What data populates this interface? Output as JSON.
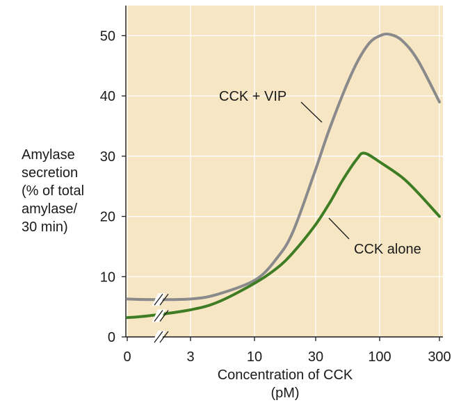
{
  "chart_data": {
    "type": "line",
    "ylabel_lines": [
      "Amylase",
      "secretion",
      "(% of total",
      "amylase/",
      "30 min)"
    ],
    "xlabel_lines": [
      "Concentration of CCK",
      "(pM)"
    ],
    "x_scale": "log",
    "x_ticks": [
      "0",
      "3",
      "10",
      "30",
      "100",
      "300"
    ],
    "y_ticks": [
      "0",
      "10",
      "20",
      "30",
      "40",
      "50"
    ],
    "ylim": [
      0,
      55
    ],
    "grid": true,
    "axis_break": true,
    "series": [
      {
        "name": "CCK + VIP",
        "color": "#8a8a8c",
        "points": [
          [
            0,
            6.3
          ],
          [
            1,
            6.2
          ],
          [
            3,
            6.3
          ],
          [
            5,
            7.1
          ],
          [
            10,
            9.5
          ],
          [
            15,
            13.2
          ],
          [
            20,
            17.5
          ],
          [
            30,
            27.5
          ],
          [
            40,
            35
          ],
          [
            60,
            44
          ],
          [
            80,
            48.5
          ],
          [
            100,
            50
          ],
          [
            120,
            50.2
          ],
          [
            150,
            49.2
          ],
          [
            200,
            46
          ],
          [
            300,
            39
          ]
        ]
      },
      {
        "name": "CCK alone",
        "color": "#3f7d25",
        "points": [
          [
            0,
            3.2
          ],
          [
            1,
            3.5
          ],
          [
            3,
            4.5
          ],
          [
            5,
            5.8
          ],
          [
            10,
            9
          ],
          [
            15,
            11.5
          ],
          [
            20,
            14
          ],
          [
            30,
            18.5
          ],
          [
            40,
            22.5
          ],
          [
            50,
            26
          ],
          [
            65,
            29.5
          ],
          [
            75,
            30.5
          ],
          [
            100,
            29
          ],
          [
            150,
            26.5
          ],
          [
            200,
            24
          ],
          [
            300,
            20
          ]
        ]
      }
    ]
  }
}
